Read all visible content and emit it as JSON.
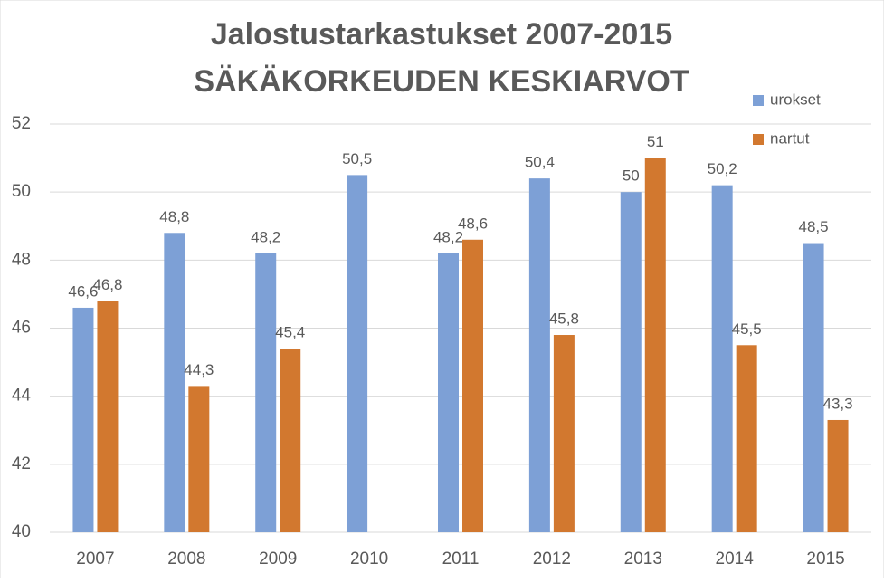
{
  "chart_data": {
    "type": "bar",
    "title": [
      "Jalostustarkastukset 2007-2015",
      "SÄKÄKORKEUDEN KESKIARVOT"
    ],
    "categories": [
      "2007",
      "2008",
      "2009",
      "2010",
      "2011",
      "2012",
      "2013",
      "2014",
      "2015"
    ],
    "series": [
      {
        "name": "urokset",
        "color": "#7da0d6",
        "values": [
          46.6,
          48.8,
          48.2,
          50.5,
          48.2,
          50.4,
          50,
          50.2,
          48.5
        ],
        "value_labels": [
          "46,6",
          "48,8",
          "48,2",
          "50,5",
          "48,2",
          "50,4",
          "50",
          "50,2",
          "48,5"
        ]
      },
      {
        "name": "nartut",
        "color": "#d2782f",
        "values": [
          46.8,
          44.3,
          45.4,
          null,
          48.6,
          45.8,
          51,
          45.5,
          43.3
        ],
        "value_labels": [
          "46,8",
          "44,3",
          "45,4",
          null,
          "48,6",
          "45,8",
          "51",
          "45,5",
          "43,3"
        ]
      }
    ],
    "ylim": [
      40,
      52
    ],
    "yticks": [
      40,
      42,
      44,
      46,
      48,
      50,
      52
    ],
    "grid": true,
    "legend": "top-right"
  }
}
